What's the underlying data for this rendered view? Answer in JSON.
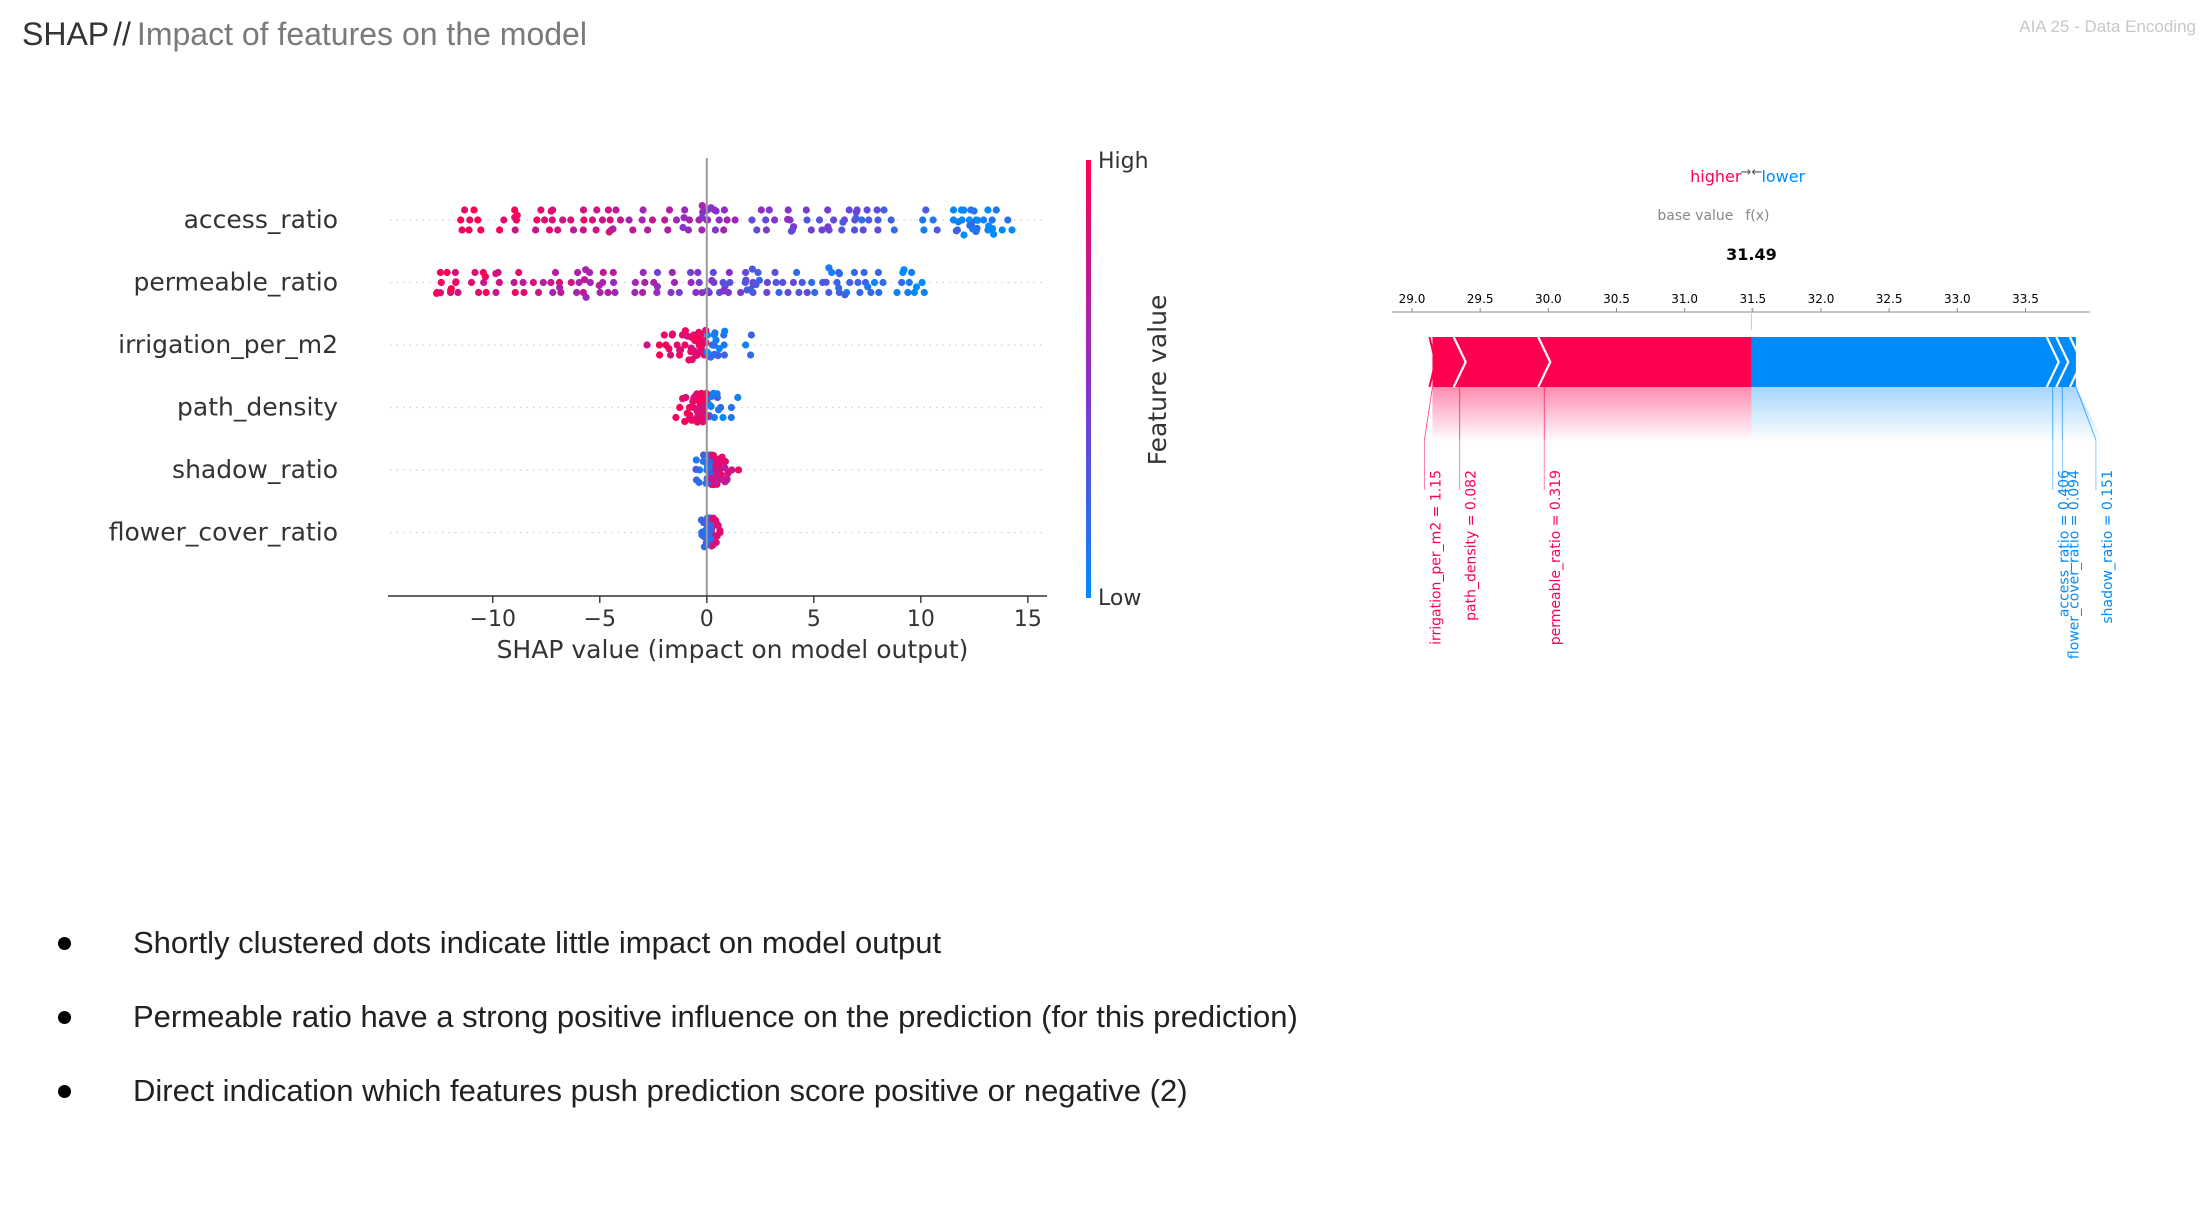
{
  "header": {
    "brand": "SHAP",
    "separator": "//",
    "title": "Impact of features on the model",
    "tag": "AIA 25 - Data Encoding"
  },
  "colors": {
    "high": "#ff0051",
    "low": "#008bfb",
    "mid": "#8b2fc9",
    "axis": "#333333",
    "grid": "#cccccc"
  },
  "chart_data": [
    {
      "type": "scatter",
      "kind": "shap-summary-beeswarm",
      "xlabel": "SHAP value (impact on model output)",
      "xticks": [
        "−10",
        "−5",
        "0",
        "5",
        "10",
        "15"
      ],
      "xtick_values": [
        -10,
        -5,
        0,
        5,
        10,
        15
      ],
      "xlim": [
        -14.8,
        15.8
      ],
      "colorbar": {
        "label": "Feature value",
        "high": "High",
        "low": "Low"
      },
      "features": [
        {
          "name": "access_ratio",
          "range": [
            -11.5,
            14.4
          ]
        },
        {
          "name": "permeable_ratio",
          "range": [
            -13.4,
            10.2
          ]
        },
        {
          "name": "irrigation_per_m2",
          "range": [
            -1.9,
            1.4
          ]
        },
        {
          "name": "path_density",
          "range": [
            -1.4,
            0.9
          ]
        },
        {
          "name": "shadow_ratio",
          "range": [
            -0.6,
            1.1
          ]
        },
        {
          "name": "flower_cover_ratio",
          "range": [
            -0.3,
            0.6
          ]
        }
      ]
    },
    {
      "type": "bar",
      "kind": "shap-force-plot",
      "legend": {
        "higher": "higher",
        "lower": "lower",
        "arrow": "→←"
      },
      "base_label": "base value",
      "output_label": "f(x)",
      "output_value": "31.49",
      "output": 31.49,
      "xlim": [
        29.0,
        33.9
      ],
      "ticks": [
        "29.0",
        "29.5",
        "30.0",
        "30.5",
        "31.0",
        "31.5",
        "32.0",
        "32.5",
        "33.0",
        "33.5"
      ],
      "tick_values": [
        29.0,
        29.5,
        30.0,
        30.5,
        31.0,
        31.5,
        32.0,
        32.5,
        33.0,
        33.5
      ],
      "positive_segments": [
        {
          "label": "irrigation_per_m2 = 1.15",
          "from": 29.15,
          "to": 29.35
        },
        {
          "label": "path_density = 0.082",
          "from": 29.35,
          "to": 29.97
        },
        {
          "label": "permeable_ratio = 0.319",
          "from": 29.97,
          "to": 31.49
        }
      ],
      "negative_segments": [
        {
          "label": "access_ratio = 0.406",
          "from": 31.49,
          "to": 33.7
        },
        {
          "label": "flower_cover_ratio = 0.094",
          "from": 33.7,
          "to": 33.77
        },
        {
          "label": "shadow_ratio = 0.151",
          "from": 33.77,
          "to": 33.87
        }
      ]
    }
  ],
  "bullets": [
    "Shortly clustered dots indicate little impact on model output",
    "Permeable ratio  have a strong positive influence on the prediction (for this prediction)",
    "Direct indication which features push prediction score positive or negative (2)"
  ]
}
